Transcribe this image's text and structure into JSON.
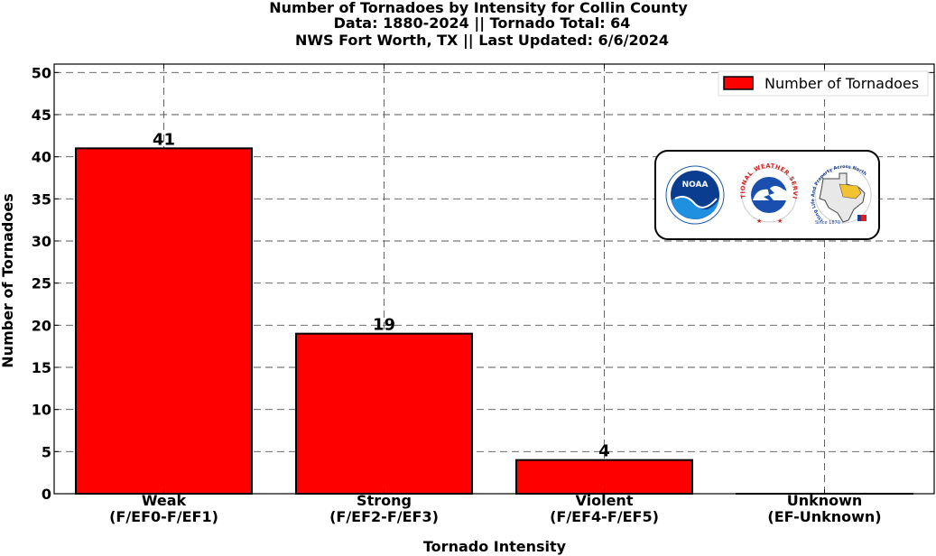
{
  "chart_data": {
    "type": "bar",
    "title_lines": [
      "Number of Tornadoes by Intensity for Collin County",
      "Data: 1880-2024 || Tornado Total: 64",
      "NWS Fort Worth, TX || Last Updated: 6/6/2024"
    ],
    "categories": [
      [
        "Weak",
        "(F/EF0-F/EF1)"
      ],
      [
        "Strong",
        "(F/EF2-F/EF3)"
      ],
      [
        "Violent",
        "(F/EF4-F/EF5)"
      ],
      [
        "Unknown",
        "(EF-Unknown)"
      ]
    ],
    "series": [
      {
        "name": "Number of Tornadoes",
        "values": [
          41,
          19,
          4,
          0
        ],
        "color": "#ff0000"
      }
    ],
    "data_labels": [
      "41",
      "19",
      "4",
      ""
    ],
    "xlabel": "Tornado Intensity",
    "ylabel": "Number of Tornadoes",
    "ylim": [
      0,
      51
    ],
    "yticks": [
      0,
      5,
      10,
      15,
      20,
      25,
      30,
      35,
      40,
      45,
      50
    ],
    "grid": true,
    "legend_position": "top-right",
    "logos": {
      "noaa_text": "NOAA",
      "nws_text": "NATIONAL WEATHER SERVICE",
      "fwd_text": "Protecting Life And Property Across North Texas",
      "fwd_since": "Since 1870"
    }
  }
}
